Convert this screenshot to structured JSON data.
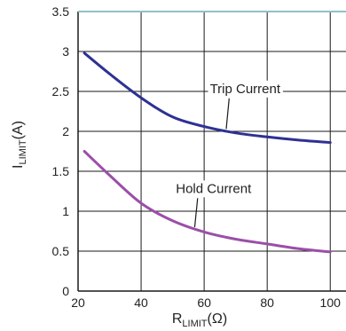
{
  "chart_data": {
    "type": "line",
    "xlabel": {
      "main": "R",
      "sub": "LIMIT",
      "unit": "(Ω)"
    },
    "ylabel": {
      "main": "I",
      "sub": "LIMIT",
      "unit": "(A)"
    },
    "xlim": [
      20,
      105
    ],
    "ylim": [
      0,
      3.5
    ],
    "x_ticks": [
      20,
      40,
      60,
      80,
      100
    ],
    "y_ticks": [
      0,
      0.5,
      1,
      1.5,
      2,
      2.5,
      3,
      3.5
    ],
    "x_tick_labels": [
      "20",
      "40",
      "60",
      "80",
      "100"
    ],
    "y_tick_labels": [
      "0",
      "0.5",
      "1",
      "1.5",
      "2",
      "2.5",
      "3",
      "3.5"
    ],
    "grid": true,
    "series": [
      {
        "name": "Trip Current",
        "color": "#2e3192",
        "x": [
          22,
          30,
          40,
          50,
          60,
          70,
          80,
          90,
          100
        ],
        "y": [
          2.98,
          2.72,
          2.42,
          2.18,
          2.06,
          1.98,
          1.93,
          1.89,
          1.86
        ]
      },
      {
        "name": "Hold Current",
        "color": "#9b4fa8",
        "x": [
          22,
          30,
          40,
          50,
          60,
          70,
          80,
          90,
          100
        ],
        "y": [
          1.75,
          1.45,
          1.1,
          0.88,
          0.74,
          0.65,
          0.59,
          0.53,
          0.49
        ]
      }
    ],
    "annotations": [
      {
        "text": "Trip Current",
        "series": 0,
        "point": [
          67,
          2.03
        ],
        "label_at": [
          73,
          2.48
        ]
      },
      {
        "text": "Hold Current",
        "series": 1,
        "point": [
          57,
          0.8
        ],
        "label_at": [
          63,
          1.23
        ]
      }
    ]
  }
}
